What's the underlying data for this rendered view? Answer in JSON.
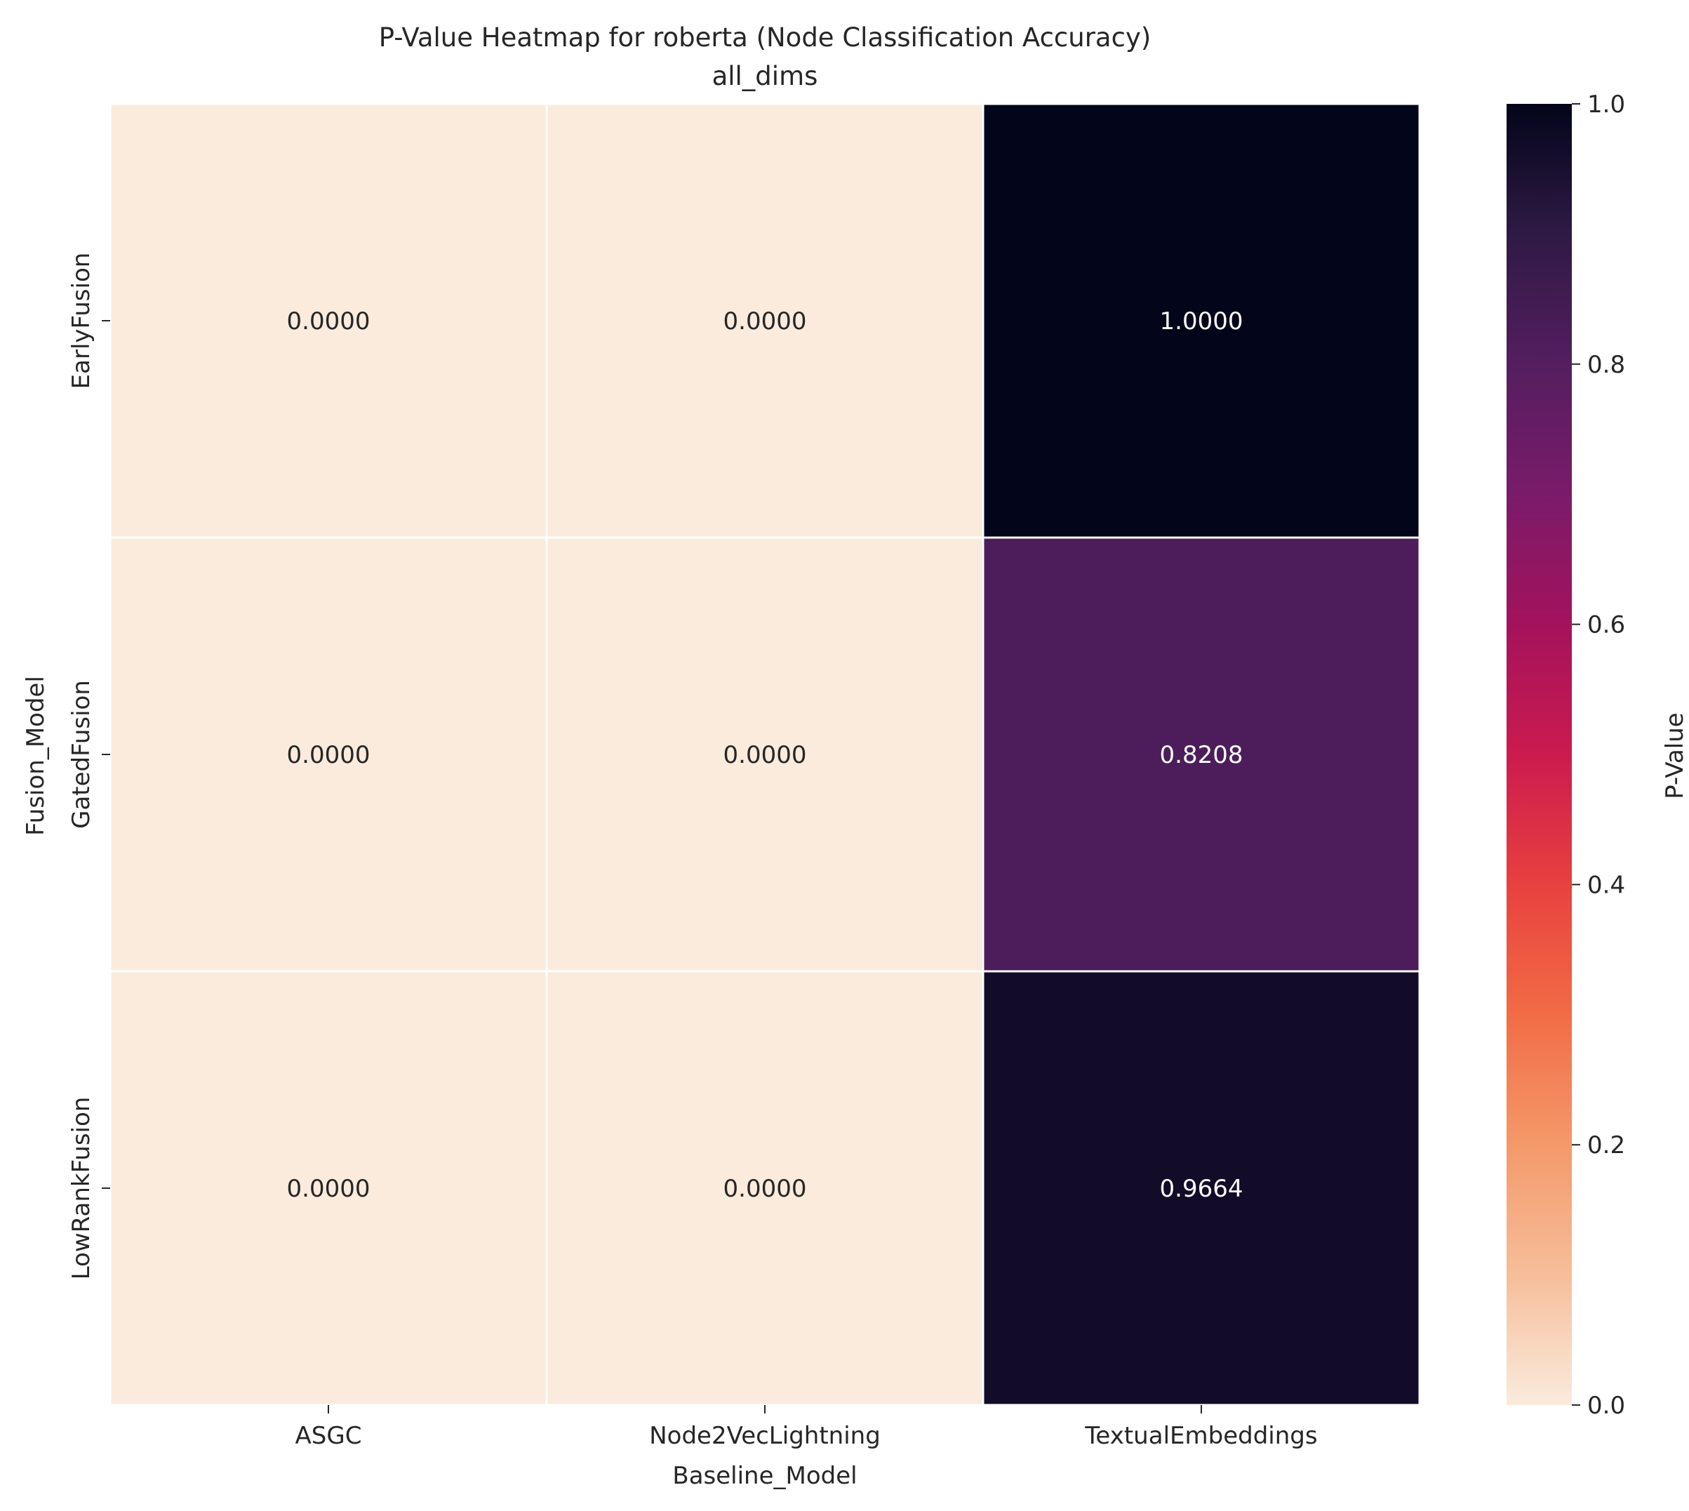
{
  "chart_data": {
    "type": "heatmap",
    "title": "P-Value Heatmap for roberta (Node Classification Accuracy)",
    "subtitle": "all_dims",
    "xlabel": "Baseline_Model",
    "ylabel": "Fusion_Model",
    "x_categories": [
      "ASGC",
      "Node2VecLightning",
      "TextualEmbeddings"
    ],
    "y_categories": [
      "EarlyFusion",
      "GatedFusion",
      "LowRankFusion"
    ],
    "values": [
      [
        0.0,
        0.0,
        1.0
      ],
      [
        0.0,
        0.0,
        0.8208
      ],
      [
        0.0,
        0.0,
        0.9664
      ]
    ],
    "cell_labels": [
      [
        "0.0000",
        "0.0000",
        "1.0000"
      ],
      [
        "0.0000",
        "0.0000",
        "0.8208"
      ],
      [
        "0.0000",
        "0.0000",
        "0.9664"
      ]
    ],
    "colorbar": {
      "label": "P-Value",
      "range": [
        0.0,
        1.0
      ],
      "ticks": [
        0.0,
        0.2,
        0.4,
        0.6,
        0.8,
        1.0
      ],
      "tick_labels": [
        "0.0",
        "0.2",
        "0.4",
        "0.6",
        "0.8",
        "1.0"
      ],
      "colormap": "rocket_r",
      "stops": [
        [
          0.0,
          "#faebdd"
        ],
        [
          0.1,
          "#f6be9a"
        ],
        [
          0.2,
          "#f4996a"
        ],
        [
          0.3,
          "#f26c45"
        ],
        [
          0.4,
          "#e8413f"
        ],
        [
          0.5,
          "#cb1b4f"
        ],
        [
          0.6,
          "#a4125c"
        ],
        [
          0.7,
          "#7a1b6a"
        ],
        [
          0.8,
          "#541e5f"
        ],
        [
          0.9,
          "#2f1a45"
        ],
        [
          1.0,
          "#03051a"
        ]
      ]
    },
    "grid": false
  }
}
